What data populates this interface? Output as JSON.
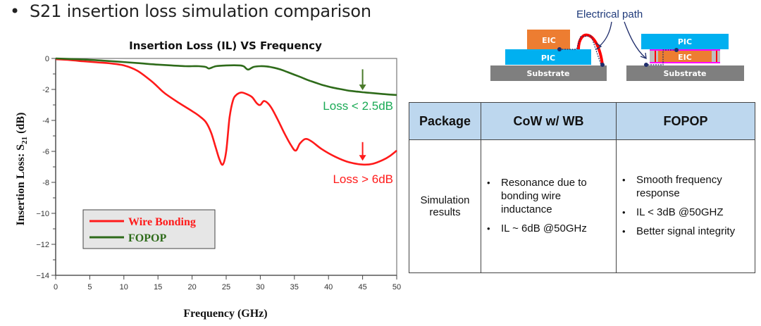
{
  "slide": {
    "bullet": "•",
    "title": "S21 insertion loss simulation comparison"
  },
  "chart_data": {
    "type": "line",
    "title": "Insertion Loss (IL) VS Frequency",
    "xlabel": "Frequency (GHz)",
    "ylabel_main": "Insertion Loss: S",
    "ylabel_sub": "21",
    "ylabel_tail": " (dB)",
    "xlim": [
      0,
      50
    ],
    "ylim": [
      -14,
      0
    ],
    "xticks": [
      0,
      5,
      10,
      15,
      20,
      25,
      30,
      35,
      40,
      45,
      50
    ],
    "yticks": [
      0,
      -2,
      -4,
      -6,
      -8,
      -10,
      -12,
      -14
    ],
    "yticks_labels": [
      "0",
      "-2",
      "-4",
      "-6",
      "-8",
      "−10",
      "−12",
      "−14"
    ],
    "grid": true,
    "legend_position": "lower-left",
    "series": [
      {
        "name": "Wire Bonding",
        "color": "#ff1a1a",
        "x": [
          0,
          2,
          4,
          6,
          8,
          10,
          12,
          14,
          15,
          16,
          18,
          20,
          21,
          22,
          22.8,
          23.5,
          24,
          24.5,
          25,
          25.5,
          26,
          26.5,
          27.2,
          28,
          28.8,
          29.5,
          30,
          30.6,
          31.5,
          32.5,
          33.5,
          34.5,
          35.2,
          35.8,
          36.6,
          37.5,
          39,
          41,
          43,
          45,
          46.5,
          48,
          49,
          50
        ],
        "y": [
          -0.05,
          -0.1,
          -0.18,
          -0.25,
          -0.32,
          -0.45,
          -0.8,
          -1.45,
          -1.85,
          -2.25,
          -2.85,
          -3.4,
          -3.7,
          -4.1,
          -4.8,
          -5.8,
          -6.5,
          -6.85,
          -6.0,
          -3.8,
          -2.7,
          -2.35,
          -2.2,
          -2.3,
          -2.5,
          -2.9,
          -3.0,
          -2.75,
          -3.1,
          -3.9,
          -4.8,
          -5.6,
          -5.95,
          -5.5,
          -5.2,
          -5.35,
          -5.85,
          -6.35,
          -6.7,
          -6.85,
          -6.8,
          -6.55,
          -6.3,
          -5.95
        ]
      },
      {
        "name": "FOPOP",
        "color": "#2e6b1a",
        "x": [
          0,
          3,
          6,
          9,
          12,
          15,
          17,
          19,
          20,
          21,
          22,
          22.5,
          23.5,
          25,
          27,
          27.6,
          28.2,
          29,
          30,
          31,
          32,
          33,
          34,
          35,
          36,
          37,
          38,
          39,
          40,
          41,
          42,
          43,
          44,
          45,
          46,
          47,
          48,
          49,
          50
        ],
        "y": [
          0,
          -0.05,
          -0.12,
          -0.2,
          -0.3,
          -0.4,
          -0.45,
          -0.5,
          -0.5,
          -0.5,
          -0.55,
          -0.65,
          -0.5,
          -0.45,
          -0.45,
          -0.52,
          -0.72,
          -0.55,
          -0.5,
          -0.52,
          -0.6,
          -0.72,
          -0.88,
          -1.05,
          -1.22,
          -1.4,
          -1.55,
          -1.7,
          -1.82,
          -1.92,
          -2.0,
          -2.08,
          -2.13,
          -2.18,
          -2.22,
          -2.26,
          -2.3,
          -2.33,
          -2.36
        ]
      }
    ],
    "annotations": [
      {
        "text": "Loss < 2.5dB",
        "color": "#1aaa55",
        "arrow_x": 45,
        "arrow_from_y": -0.7,
        "arrow_to_y": -2.05,
        "arrow_color": "#4a7a2a"
      },
      {
        "text": "Loss > 6dB",
        "color": "#ff1a1a",
        "arrow_x": 45,
        "arrow_from_y": -5.4,
        "arrow_to_y": -6.6,
        "arrow_color": "#ff1a1a"
      }
    ]
  },
  "diagram": {
    "electrical_path_label": "Electrical path",
    "left_stack": {
      "top": "EIC",
      "middle": "PIC",
      "base": "Substrate"
    },
    "right_stack": {
      "top": "PIC",
      "middle": "EIC",
      "base": "Substrate"
    },
    "colors": {
      "eic": "#ed7d31",
      "pic": "#00b0f0",
      "substrate": "#7f7f7f",
      "wire": "#ff0000",
      "redistribution": "#ff00ff",
      "via_fill": "#bfbfbf",
      "path": "#1f2d6b"
    }
  },
  "table": {
    "headers": [
      "Package",
      "CoW w/ WB",
      "FOPOP"
    ],
    "header_bg": "#bdd7ee",
    "row_label": "Simulation results",
    "cow_points": [
      "Resonance due to bonding wire inductance",
      "IL ~ 6dB @50GHz"
    ],
    "fopop_points": [
      "Smooth frequency response",
      "IL < 3dB @50GHZ",
      "Better signal integrity"
    ]
  }
}
